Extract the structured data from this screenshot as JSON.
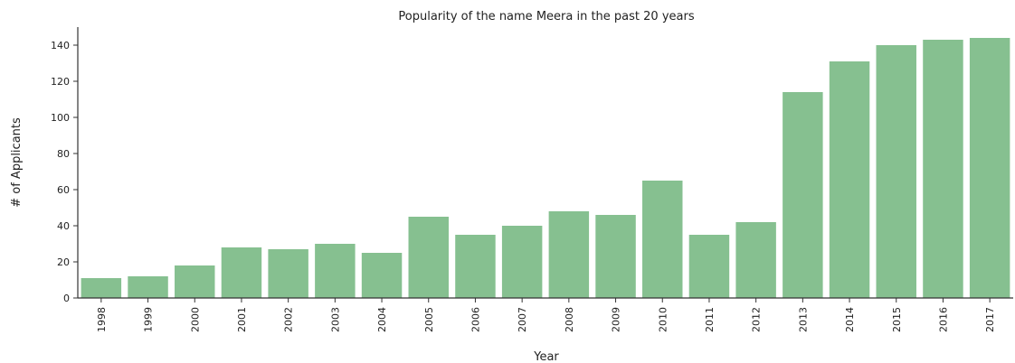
{
  "chart_data": {
    "type": "bar",
    "title": "Popularity of the name Meera in the past 20 years",
    "xlabel": "Year",
    "ylabel": "# of Applicants",
    "categories": [
      "1998",
      "1999",
      "2000",
      "2001",
      "2002",
      "2003",
      "2004",
      "2005",
      "2006",
      "2007",
      "2008",
      "2009",
      "2010",
      "2011",
      "2012",
      "2013",
      "2014",
      "2015",
      "2016",
      "2017"
    ],
    "values": [
      11,
      12,
      18,
      28,
      27,
      30,
      25,
      45,
      35,
      40,
      48,
      46,
      65,
      35,
      42,
      114,
      131,
      140,
      143,
      144
    ],
    "ylim": [
      0,
      150
    ],
    "yticks": [
      0,
      20,
      40,
      60,
      80,
      100,
      120,
      140
    ],
    "grid": false,
    "bar_color": "#86c090",
    "axis_color": "#333333"
  }
}
